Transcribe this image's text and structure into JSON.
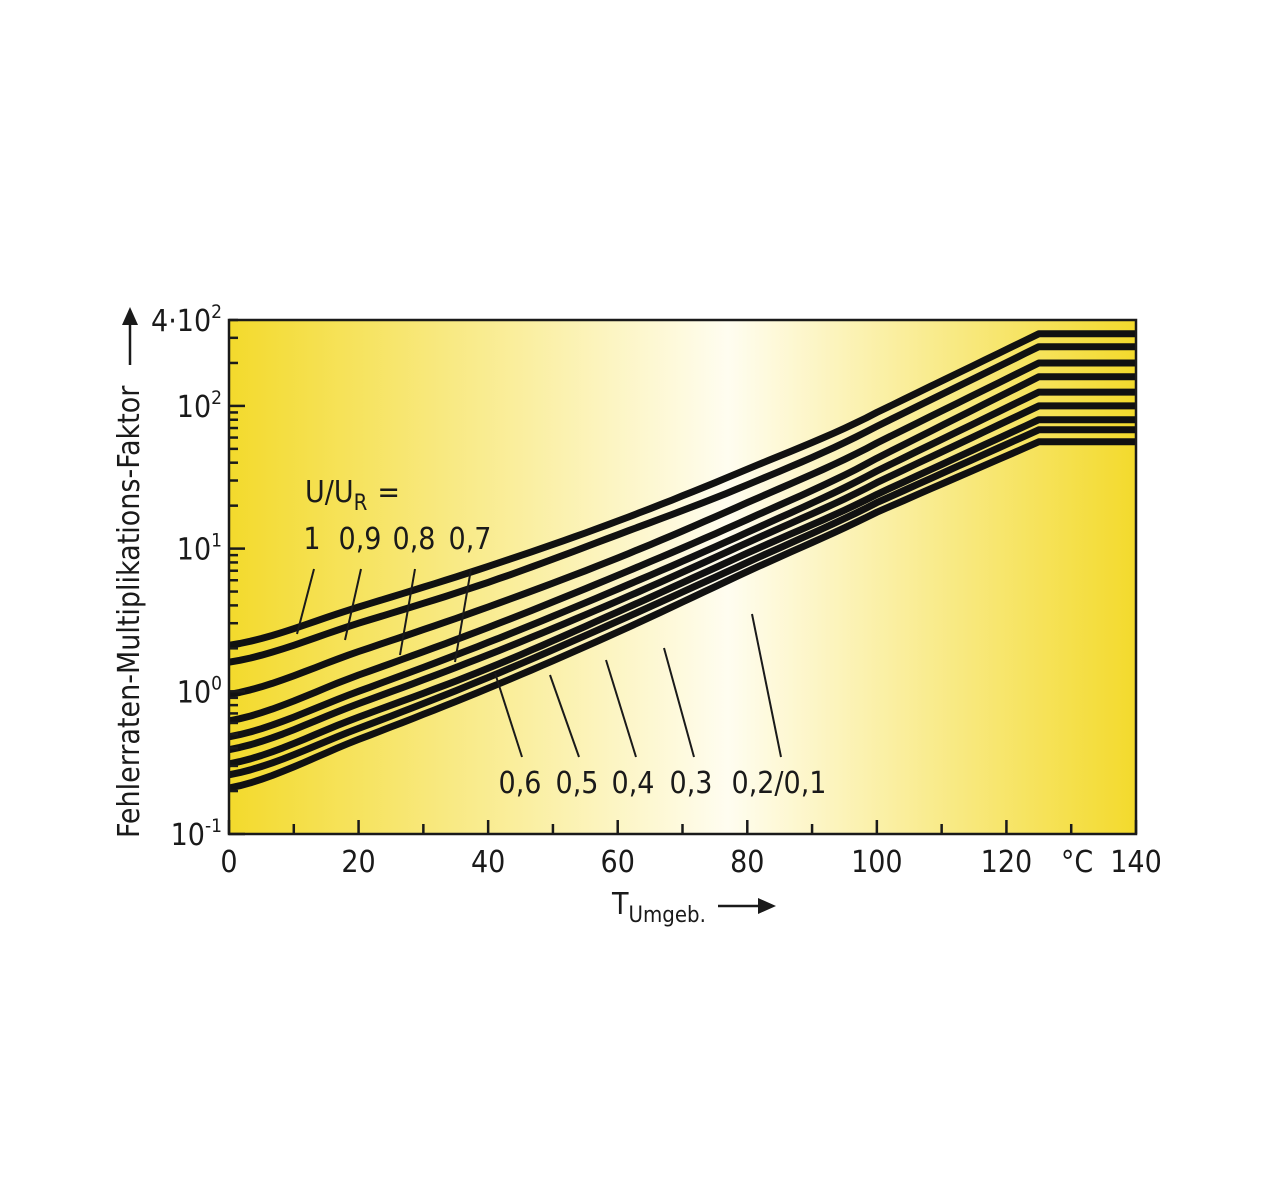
{
  "chart_data": {
    "type": "line",
    "xlabel": "T",
    "xlabel_sub": "Umgeb.",
    "ylabel": "Fehlerraten-Multiplikations-Faktor",
    "x_unit": "°C",
    "xlim": [
      0,
      140
    ],
    "ylim": [
      0.1,
      400
    ],
    "y_scale": "log",
    "x_ticks": [
      0,
      20,
      40,
      60,
      80,
      100,
      120,
      140
    ],
    "y_tick_labels": [
      {
        "base": "10",
        "exp": "-1",
        "value": 0.1
      },
      {
        "base": "10",
        "exp": "0",
        "value": 1
      },
      {
        "base": "10",
        "exp": "1",
        "value": 10
      },
      {
        "base": "10",
        "exp": "2",
        "value": 100
      },
      {
        "base": "4·10",
        "exp": "2",
        "value": 400
      }
    ],
    "legend_title": "U/U",
    "legend_title_sub": "R",
    "legend_title_suffix": "=",
    "series_labels_top": [
      "1",
      "0,9",
      "0,8",
      "0,7"
    ],
    "series_labels_bottom": [
      "0,6",
      "0,5",
      "0,4",
      "0,3",
      "0,2/0,1"
    ],
    "x": [
      0,
      20,
      40,
      60,
      80,
      100,
      125,
      140
    ],
    "series": [
      {
        "name": "1",
        "values": [
          2.1,
          3.9,
          7.5,
          15.6,
          36,
          90,
          320,
          320
        ]
      },
      {
        "name": "0,9",
        "values": [
          1.6,
          3.0,
          5.8,
          12.5,
          28,
          72,
          260,
          260
        ]
      },
      {
        "name": "0,8",
        "values": [
          0.95,
          1.9,
          3.9,
          8.6,
          21,
          55,
          200,
          200
        ]
      },
      {
        "name": "0,7",
        "values": [
          0.62,
          1.3,
          2.8,
          6.5,
          16,
          43,
          160,
          160
        ]
      },
      {
        "name": "0,6",
        "values": [
          0.48,
          1.0,
          2.2,
          5.2,
          13,
          35,
          125,
          125
        ]
      },
      {
        "name": "0,5",
        "values": [
          0.39,
          0.82,
          1.8,
          4.3,
          11,
          29,
          100,
          100
        ]
      },
      {
        "name": "0,4",
        "values": [
          0.31,
          0.66,
          1.45,
          3.6,
          9.3,
          24,
          80,
          80
        ]
      },
      {
        "name": "0,3",
        "values": [
          0.26,
          0.55,
          1.25,
          3.1,
          8.0,
          21,
          68,
          68
        ]
      },
      {
        "name": "0,2/0,1",
        "values": [
          0.21,
          0.46,
          1.05,
          2.6,
          6.9,
          18,
          56,
          56
        ]
      }
    ],
    "grid": false,
    "colors": {
      "background_center": "#fffdf0",
      "background_edge": "#f3da2c",
      "line": "#111111"
    }
  }
}
